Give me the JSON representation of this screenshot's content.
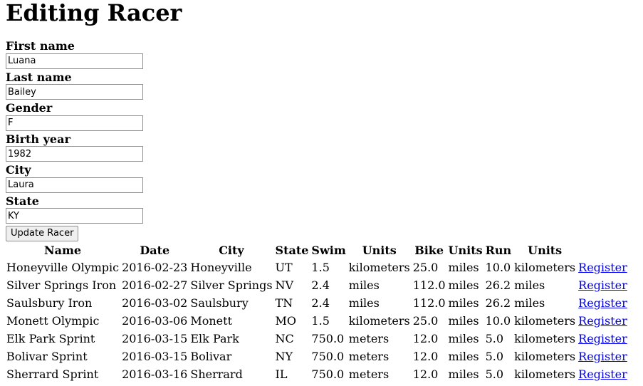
{
  "page_title": "Editing Racer",
  "form": {
    "fields": [
      {
        "label": "First name",
        "value": "Luana"
      },
      {
        "label": "Last name",
        "value": "Bailey"
      },
      {
        "label": "Gender",
        "value": "F"
      },
      {
        "label": "Birth year",
        "value": "1982"
      },
      {
        "label": "City",
        "value": "Laura"
      },
      {
        "label": "State",
        "value": "KY"
      }
    ],
    "submit_label": "Update Racer"
  },
  "table": {
    "headers": [
      "Name",
      "Date",
      "City",
      "State",
      "Swim",
      "Units",
      "Bike",
      "Units",
      "Run",
      "Units",
      ""
    ],
    "rows": [
      [
        "Honeyville Olympic",
        "2016-02-23",
        "Honeyville",
        "UT",
        "1.5",
        "kilometers",
        "25.0",
        "miles",
        "10.0",
        "kilometers",
        "Register"
      ],
      [
        "Silver Springs Iron",
        "2016-02-27",
        "Silver Springs",
        "NV",
        "2.4",
        "miles",
        "112.0",
        "miles",
        "26.2",
        "miles",
        "Register"
      ],
      [
        "Saulsbury Iron",
        "2016-03-02",
        "Saulsbury",
        "TN",
        "2.4",
        "miles",
        "112.0",
        "miles",
        "26.2",
        "miles",
        "Register"
      ],
      [
        "Monett Olympic",
        "2016-03-06",
        "Monett",
        "MO",
        "1.5",
        "kilometers",
        "25.0",
        "miles",
        "10.0",
        "kilometers",
        "Register"
      ],
      [
        "Elk Park Sprint",
        "2016-03-15",
        "Elk Park",
        "NC",
        "750.0",
        "meters",
        "12.0",
        "miles",
        "5.0",
        "kilometers",
        "Register"
      ],
      [
        "Bolivar Sprint",
        "2016-03-15",
        "Bolivar",
        "NY",
        "750.0",
        "meters",
        "12.0",
        "miles",
        "5.0",
        "kilometers",
        "Register"
      ],
      [
        "Sherrard Sprint",
        "2016-03-16",
        "Sherrard",
        "IL",
        "750.0",
        "meters",
        "12.0",
        "miles",
        "5.0",
        "kilometers",
        "Register"
      ]
    ]
  }
}
